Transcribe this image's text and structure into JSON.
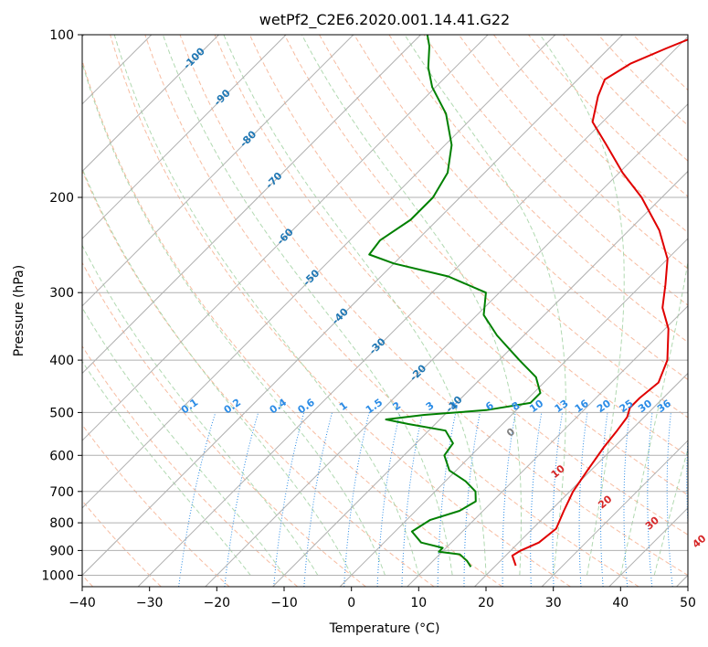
{
  "chart_data": {
    "type": "line",
    "subtype": "skew-t log-p diagram",
    "title": "wetPf2_C2E6.2020.001.14.41.G22",
    "xlabel": "Temperature (°C)",
    "ylabel": "Pressure (hPa)",
    "xlim": [
      -40,
      50
    ],
    "ylim": [
      1050,
      100
    ],
    "y_scale": "log",
    "x_ticks": [
      -40,
      -30,
      -20,
      -10,
      0,
      10,
      20,
      30,
      40,
      50
    ],
    "y_ticks": [
      100,
      200,
      300,
      400,
      500,
      600,
      700,
      800,
      900,
      1000
    ],
    "grid": true,
    "series": [
      {
        "color": "#e00000",
        "points": [
          {
            "p": 960,
            "t": 23.0
          },
          {
            "p": 920,
            "t": 21.0
          },
          {
            "p": 900,
            "t": 21.5
          },
          {
            "p": 870,
            "t": 23.0
          },
          {
            "p": 820,
            "t": 23.5
          },
          {
            "p": 760,
            "t": 22.0
          },
          {
            "p": 700,
            "t": 20.5
          },
          {
            "p": 640,
            "t": 19.5
          },
          {
            "p": 580,
            "t": 18.5
          },
          {
            "p": 540,
            "t": 18.0
          },
          {
            "p": 510,
            "t": 17.5
          },
          {
            "p": 490,
            "t": 16.5
          },
          {
            "p": 470,
            "t": 16.5
          },
          {
            "p": 440,
            "t": 17.0
          },
          {
            "p": 400,
            "t": 15.0
          },
          {
            "p": 350,
            "t": 10.5
          },
          {
            "p": 320,
            "t": 6.5
          },
          {
            "p": 290,
            "t": 3.5
          },
          {
            "p": 260,
            "t": 0.0
          },
          {
            "p": 230,
            "t": -5.5
          },
          {
            "p": 200,
            "t": -13.0
          },
          {
            "p": 180,
            "t": -19.5
          },
          {
            "p": 160,
            "t": -26.0
          },
          {
            "p": 145,
            "t": -31.5
          },
          {
            "p": 130,
            "t": -34.5
          },
          {
            "p": 121,
            "t": -36.0
          },
          {
            "p": 113,
            "t": -34.5
          },
          {
            "p": 106,
            "t": -31.5
          },
          {
            "p": 100,
            "t": -28.5
          }
        ]
      },
      {
        "color": "#008000",
        "points": [
          {
            "p": 965,
            "t": 16.5
          },
          {
            "p": 940,
            "t": 15.0
          },
          {
            "p": 915,
            "t": 13.0
          },
          {
            "p": 905,
            "t": 9.5
          },
          {
            "p": 890,
            "t": 9.5
          },
          {
            "p": 870,
            "t": 5.5
          },
          {
            "p": 830,
            "t": 2.5
          },
          {
            "p": 790,
            "t": 3.5
          },
          {
            "p": 760,
            "t": 6.5
          },
          {
            "p": 730,
            "t": 7.5
          },
          {
            "p": 700,
            "t": 6.0
          },
          {
            "p": 670,
            "t": 3.0
          },
          {
            "p": 640,
            "t": -1.0
          },
          {
            "p": 600,
            "t": -4.0
          },
          {
            "p": 570,
            "t": -4.5
          },
          {
            "p": 540,
            "t": -7.5
          },
          {
            "p": 525,
            "t": -14.0
          },
          {
            "p": 515,
            "t": -18.0
          },
          {
            "p": 505,
            "t": -13.0
          },
          {
            "p": 495,
            "t": -4.5
          },
          {
            "p": 480,
            "t": 1.0
          },
          {
            "p": 460,
            "t": 1.0
          },
          {
            "p": 430,
            "t": -2.0
          },
          {
            "p": 400,
            "t": -7.0
          },
          {
            "p": 360,
            "t": -14.0
          },
          {
            "p": 330,
            "t": -19.0
          },
          {
            "p": 300,
            "t": -22.0
          },
          {
            "p": 280,
            "t": -30.0
          },
          {
            "p": 265,
            "t": -40.0
          },
          {
            "p": 255,
            "t": -45.0
          },
          {
            "p": 240,
            "t": -45.5
          },
          {
            "p": 220,
            "t": -44.0
          },
          {
            "p": 200,
            "t": -44.0
          },
          {
            "p": 180,
            "t": -45.5
          },
          {
            "p": 160,
            "t": -49.0
          },
          {
            "p": 140,
            "t": -54.5
          },
          {
            "p": 125,
            "t": -60.5
          },
          {
            "p": 115,
            "t": -64.0
          },
          {
            "p": 105,
            "t": -67.0
          },
          {
            "p": 100,
            "t": -69.0
          }
        ]
      }
    ],
    "isotherms": [
      -170,
      -160,
      -150,
      -140,
      -130,
      -120,
      -110,
      -100,
      -90,
      -80,
      -70,
      -60,
      -50,
      -40,
      -30,
      -20,
      -10,
      0,
      10,
      20,
      30,
      40,
      50
    ],
    "dry_adiabats": [
      -60,
      -50,
      -40,
      -30,
      -20,
      -10,
      0,
      10,
      20,
      30,
      40,
      50,
      60,
      70,
      80,
      90,
      100,
      110,
      120,
      130,
      140,
      150,
      160,
      170,
      180
    ],
    "moist_adiabats": [
      -15,
      -10,
      -5,
      0,
      5,
      10,
      15,
      20,
      25,
      30,
      35,
      40,
      45
    ],
    "mixing_ratios": [
      0.1,
      0.2,
      0.4,
      0.6,
      1,
      1.5,
      2,
      3,
      4,
      6,
      8,
      10,
      13,
      16,
      20,
      25,
      30,
      36
    ],
    "mixing_ratio_labels": [
      "0.1",
      "0.2",
      "0.4",
      "0.6",
      "1",
      "1.5",
      "2",
      "3",
      "4",
      "6",
      "8",
      "10",
      "13",
      "16",
      "20",
      "25",
      "30",
      "36"
    ],
    "theta_e_labels": [
      "0",
      "10",
      "20",
      "30",
      "40"
    ],
    "isotherm_labels": [
      "-100",
      "-90",
      "-80",
      "-70",
      "-60",
      "-50",
      "-40",
      "-30",
      "-20",
      "-10"
    ],
    "colors": {
      "temperature": "#e00000",
      "dewpoint": "#008000",
      "grid": "#b0b0b0",
      "dry_adiabat": "#f4a582",
      "moist_adiabat": "#9ecf9e",
      "mixing_ratio": "#2b8ce6",
      "isotherm_label": "#1f77b4",
      "theta_e_label": "#d62728",
      "theta_e_zero": "#808080"
    }
  }
}
